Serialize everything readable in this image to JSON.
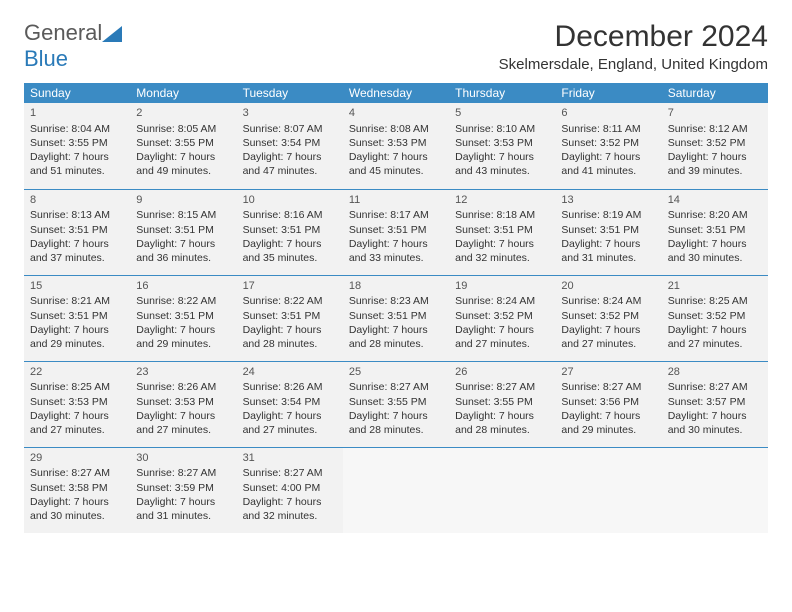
{
  "brand": {
    "word1": "General",
    "word2": "Blue"
  },
  "title": "December 2024",
  "location": "Skelmersdale, England, United Kingdom",
  "colors": {
    "header_bg": "#3b8bc4",
    "header_fg": "#ffffff",
    "cell_bg": "#f2f2f2",
    "empty_bg": "#f7f7f7",
    "border": "#3b8bc4",
    "brand_gray": "#5a5a5a",
    "brand_blue": "#2a7ab8"
  },
  "weekdays": [
    "Sunday",
    "Monday",
    "Tuesday",
    "Wednesday",
    "Thursday",
    "Friday",
    "Saturday"
  ],
  "weeks": [
    [
      {
        "day": "1",
        "sunrise": "8:04 AM",
        "sunset": "3:55 PM",
        "daylight": "7 hours and 51 minutes."
      },
      {
        "day": "2",
        "sunrise": "8:05 AM",
        "sunset": "3:55 PM",
        "daylight": "7 hours and 49 minutes."
      },
      {
        "day": "3",
        "sunrise": "8:07 AM",
        "sunset": "3:54 PM",
        "daylight": "7 hours and 47 minutes."
      },
      {
        "day": "4",
        "sunrise": "8:08 AM",
        "sunset": "3:53 PM",
        "daylight": "7 hours and 45 minutes."
      },
      {
        "day": "5",
        "sunrise": "8:10 AM",
        "sunset": "3:53 PM",
        "daylight": "7 hours and 43 minutes."
      },
      {
        "day": "6",
        "sunrise": "8:11 AM",
        "sunset": "3:52 PM",
        "daylight": "7 hours and 41 minutes."
      },
      {
        "day": "7",
        "sunrise": "8:12 AM",
        "sunset": "3:52 PM",
        "daylight": "7 hours and 39 minutes."
      }
    ],
    [
      {
        "day": "8",
        "sunrise": "8:13 AM",
        "sunset": "3:51 PM",
        "daylight": "7 hours and 37 minutes."
      },
      {
        "day": "9",
        "sunrise": "8:15 AM",
        "sunset": "3:51 PM",
        "daylight": "7 hours and 36 minutes."
      },
      {
        "day": "10",
        "sunrise": "8:16 AM",
        "sunset": "3:51 PM",
        "daylight": "7 hours and 35 minutes."
      },
      {
        "day": "11",
        "sunrise": "8:17 AM",
        "sunset": "3:51 PM",
        "daylight": "7 hours and 33 minutes."
      },
      {
        "day": "12",
        "sunrise": "8:18 AM",
        "sunset": "3:51 PM",
        "daylight": "7 hours and 32 minutes."
      },
      {
        "day": "13",
        "sunrise": "8:19 AM",
        "sunset": "3:51 PM",
        "daylight": "7 hours and 31 minutes."
      },
      {
        "day": "14",
        "sunrise": "8:20 AM",
        "sunset": "3:51 PM",
        "daylight": "7 hours and 30 minutes."
      }
    ],
    [
      {
        "day": "15",
        "sunrise": "8:21 AM",
        "sunset": "3:51 PM",
        "daylight": "7 hours and 29 minutes."
      },
      {
        "day": "16",
        "sunrise": "8:22 AM",
        "sunset": "3:51 PM",
        "daylight": "7 hours and 29 minutes."
      },
      {
        "day": "17",
        "sunrise": "8:22 AM",
        "sunset": "3:51 PM",
        "daylight": "7 hours and 28 minutes."
      },
      {
        "day": "18",
        "sunrise": "8:23 AM",
        "sunset": "3:51 PM",
        "daylight": "7 hours and 28 minutes."
      },
      {
        "day": "19",
        "sunrise": "8:24 AM",
        "sunset": "3:52 PM",
        "daylight": "7 hours and 27 minutes."
      },
      {
        "day": "20",
        "sunrise": "8:24 AM",
        "sunset": "3:52 PM",
        "daylight": "7 hours and 27 minutes."
      },
      {
        "day": "21",
        "sunrise": "8:25 AM",
        "sunset": "3:52 PM",
        "daylight": "7 hours and 27 minutes."
      }
    ],
    [
      {
        "day": "22",
        "sunrise": "8:25 AM",
        "sunset": "3:53 PM",
        "daylight": "7 hours and 27 minutes."
      },
      {
        "day": "23",
        "sunrise": "8:26 AM",
        "sunset": "3:53 PM",
        "daylight": "7 hours and 27 minutes."
      },
      {
        "day": "24",
        "sunrise": "8:26 AM",
        "sunset": "3:54 PM",
        "daylight": "7 hours and 27 minutes."
      },
      {
        "day": "25",
        "sunrise": "8:27 AM",
        "sunset": "3:55 PM",
        "daylight": "7 hours and 28 minutes."
      },
      {
        "day": "26",
        "sunrise": "8:27 AM",
        "sunset": "3:55 PM",
        "daylight": "7 hours and 28 minutes."
      },
      {
        "day": "27",
        "sunrise": "8:27 AM",
        "sunset": "3:56 PM",
        "daylight": "7 hours and 29 minutes."
      },
      {
        "day": "28",
        "sunrise": "8:27 AM",
        "sunset": "3:57 PM",
        "daylight": "7 hours and 30 minutes."
      }
    ],
    [
      {
        "day": "29",
        "sunrise": "8:27 AM",
        "sunset": "3:58 PM",
        "daylight": "7 hours and 30 minutes."
      },
      {
        "day": "30",
        "sunrise": "8:27 AM",
        "sunset": "3:59 PM",
        "daylight": "7 hours and 31 minutes."
      },
      {
        "day": "31",
        "sunrise": "8:27 AM",
        "sunset": "4:00 PM",
        "daylight": "7 hours and 32 minutes."
      },
      null,
      null,
      null,
      null
    ]
  ],
  "labels": {
    "sunrise": "Sunrise: ",
    "sunset": "Sunset: ",
    "daylight": "Daylight: "
  }
}
